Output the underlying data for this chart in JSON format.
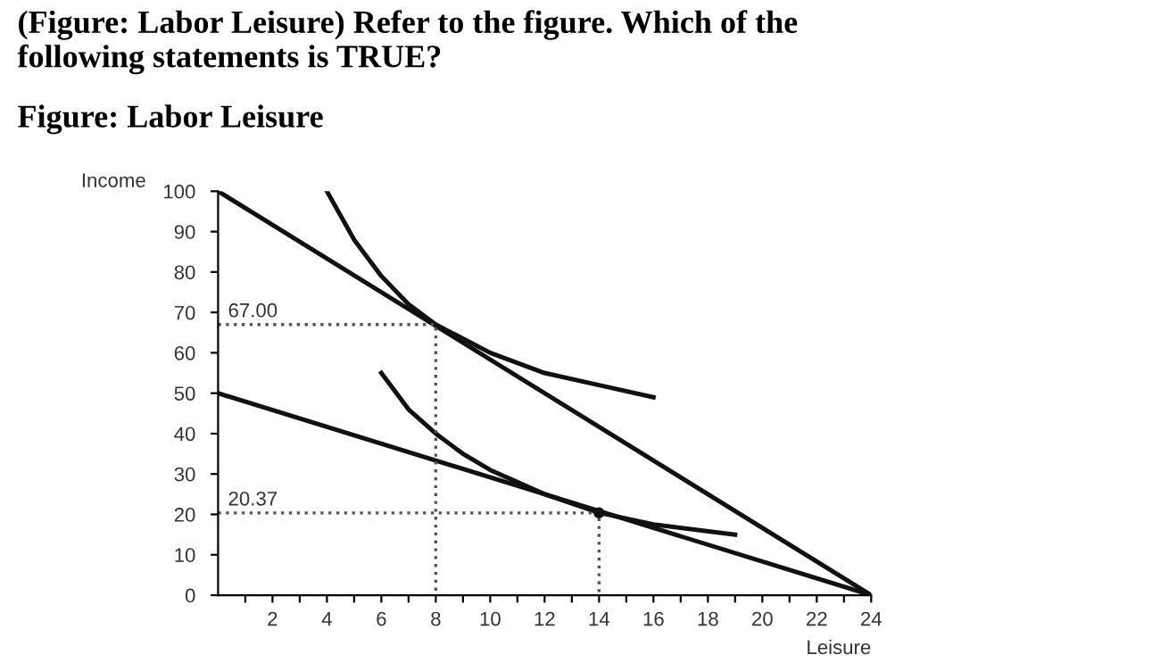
{
  "chart_data": {
    "type": "line",
    "title": "(Figure: Labor Leisure) Refer to the figure. Which of the\nfollowing statements is TRUE?",
    "subtitle": "Figure: Labor Leisure",
    "xlabel": "Leisure",
    "ylabel": "Income",
    "series": [
      {
        "color": "#111111",
        "x": [
          0,
          24
        ],
        "values": [
          100,
          0
        ]
      },
      {
        "color": "#111111",
        "x": [
          0,
          24
        ],
        "values": [
          50,
          0
        ]
      },
      {
        "color": "#111111",
        "x": [
          4,
          5,
          6,
          7,
          8,
          10,
          12,
          14,
          16
        ],
        "values": [
          100,
          88,
          79,
          72,
          67,
          60,
          55,
          52,
          49
        ]
      },
      {
        "color": "#111111",
        "x": [
          6,
          7,
          8,
          9,
          10,
          12,
          14,
          16,
          19
        ],
        "values": [
          55,
          46,
          40,
          35,
          31,
          25,
          20.4,
          17.5,
          15
        ]
      },
      {
        "color": "#555555",
        "line_style": "dotted",
        "x": [
          0,
          8,
          8
        ],
        "values": [
          67,
          67,
          0
        ]
      },
      {
        "color": "#555555",
        "line_style": "dotted",
        "x": [
          0,
          14,
          14
        ],
        "values": [
          20.37,
          20.37,
          0
        ]
      },
      {
        "type": "scatter",
        "color": "#111111",
        "x": [
          14
        ],
        "values": [
          20.37
        ]
      }
    ],
    "annotations": [
      {
        "text": "67.00",
        "x": 0,
        "y": 67
      },
      {
        "text": "20.37",
        "x": 0,
        "y": 20.37
      }
    ],
    "xlim": [
      0,
      24
    ],
    "ylim": [
      0,
      100
    ],
    "xticks": [
      {
        "value": 1,
        "label": null
      },
      2,
      {
        "value": 3,
        "label": null
      },
      4,
      {
        "value": 5,
        "label": null
      },
      6,
      {
        "value": 7,
        "label": null
      },
      8,
      {
        "value": 9,
        "label": null
      },
      10,
      {
        "value": 11,
        "label": null
      },
      12,
      {
        "value": 13,
        "label": null
      },
      14,
      {
        "value": 15,
        "label": null
      },
      16,
      {
        "value": 17,
        "label": null
      },
      18,
      {
        "value": 19,
        "label": null
      },
      20,
      {
        "value": 21,
        "label": null
      },
      22,
      {
        "value": 23,
        "label": null
      },
      24
    ],
    "yticks": [
      0,
      10,
      20,
      30,
      40,
      50,
      60,
      70,
      80,
      90,
      100
    ],
    "grid": false,
    "legend": false
  }
}
